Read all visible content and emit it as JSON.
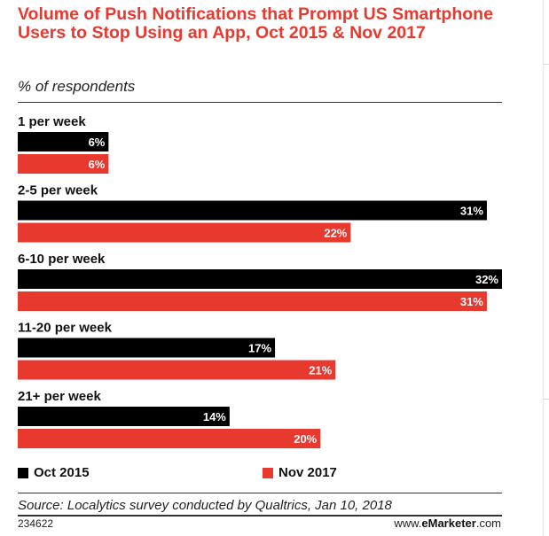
{
  "chart_data": {
    "type": "bar",
    "orientation": "horizontal",
    "title": "Volume of Push Notifications that Prompt US Smartphone Users to Stop Using an App, Oct 2015 & Nov 2017",
    "subtitle": "% of respondents",
    "categories": [
      "1 per week",
      "2-5 per week",
      "6-10 per week",
      "11-20 per week",
      "21+ per week"
    ],
    "series": [
      {
        "name": "Oct 2015",
        "values": [
          6,
          31,
          32,
          17,
          14
        ],
        "color": "#000000"
      },
      {
        "name": "Nov 2017",
        "values": [
          6,
          22,
          31,
          21,
          20
        ],
        "color": "#e8392f"
      }
    ],
    "value_labels": [
      [
        "6%",
        "31%",
        "32%",
        "17%",
        "14%"
      ],
      [
        "6%",
        "22%",
        "31%",
        "21%",
        "20%"
      ]
    ],
    "unit": "%",
    "xlim": [
      0,
      32
    ],
    "grid": false,
    "legend_position": "bottom"
  },
  "legend": {
    "oct": "Oct 2015",
    "nov": "Nov 2017"
  },
  "source": "Source: Localytics survey conducted by Qualtrics, Jan 10, 2018",
  "footer": {
    "chart_id": "234622",
    "brand_prefix": "www.",
    "brand_name": "eMarketer",
    "brand_suffix": ".com"
  }
}
